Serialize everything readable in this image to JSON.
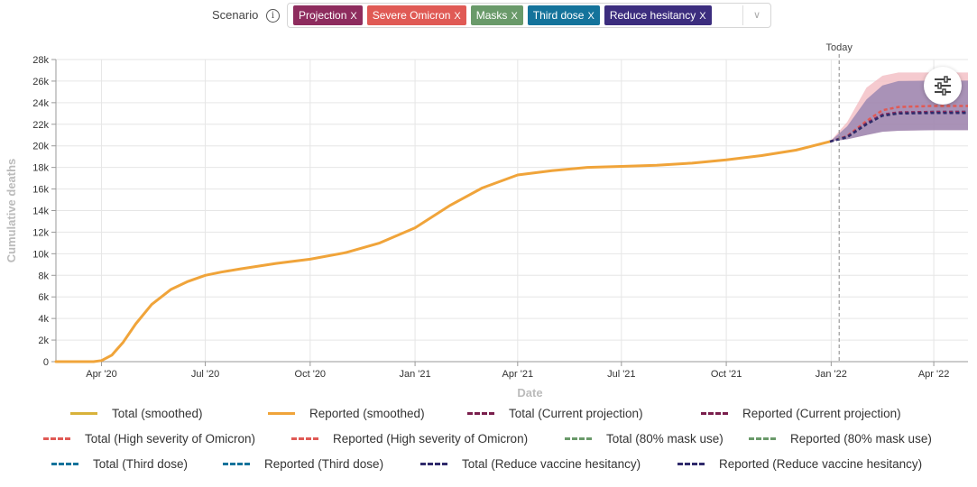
{
  "scenario": {
    "label": "Scenario",
    "info_glyph": "i",
    "chips": [
      {
        "label": "Projection",
        "color": "#8e2c5e"
      },
      {
        "label": "Severe Omicron",
        "color": "#e05a55"
      },
      {
        "label": "Masks",
        "color": "#6a9a6a"
      },
      {
        "label": "Third dose",
        "color": "#14739b"
      },
      {
        "label": "Reduce hesitancy",
        "color": "#3c2d7e"
      }
    ],
    "chip_close": "X",
    "caret": "∨"
  },
  "chart_data": {
    "type": "line",
    "xlabel": "Date",
    "ylabel": "Cumulative deaths",
    "ylim": [
      0,
      28000
    ],
    "x_range": [
      "2020-02-21",
      "2022-05-01"
    ],
    "x_ticks": [
      {
        "date": "2020-04-01",
        "label": "Apr '20"
      },
      {
        "date": "2020-07-01",
        "label": "Jul '20"
      },
      {
        "date": "2020-10-01",
        "label": "Oct '20"
      },
      {
        "date": "2021-01-01",
        "label": "Jan '21"
      },
      {
        "date": "2021-04-01",
        "label": "Apr '21"
      },
      {
        "date": "2021-07-01",
        "label": "Jul '21"
      },
      {
        "date": "2021-10-01",
        "label": "Oct '21"
      },
      {
        "date": "2022-01-01",
        "label": "Jan '22"
      },
      {
        "date": "2022-04-01",
        "label": "Apr '22"
      }
    ],
    "y_ticks": [
      {
        "value": 0,
        "label": "0"
      },
      {
        "value": 2000,
        "label": "2k"
      },
      {
        "value": 4000,
        "label": "4k"
      },
      {
        "value": 6000,
        "label": "6k"
      },
      {
        "value": 8000,
        "label": "8k"
      },
      {
        "value": 10000,
        "label": "10k"
      },
      {
        "value": 12000,
        "label": "12k"
      },
      {
        "value": 14000,
        "label": "14k"
      },
      {
        "value": 16000,
        "label": "16k"
      },
      {
        "value": 18000,
        "label": "18k"
      },
      {
        "value": 20000,
        "label": "20k"
      },
      {
        "value": 22000,
        "label": "22k"
      },
      {
        "value": 24000,
        "label": "24k"
      },
      {
        "value": 26000,
        "label": "26k"
      },
      {
        "value": 28000,
        "label": "28k"
      }
    ],
    "grid": true,
    "today": {
      "date": "2022-01-08",
      "label": "Today"
    },
    "series": [
      {
        "name": "Reported (smoothed)",
        "color": "#f0a43a",
        "style": "solid",
        "points": [
          [
            "2020-02-21",
            0
          ],
          [
            "2020-03-15",
            0
          ],
          [
            "2020-03-25",
            0
          ],
          [
            "2020-04-01",
            100
          ],
          [
            "2020-04-10",
            600
          ],
          [
            "2020-04-20",
            1800
          ],
          [
            "2020-05-01",
            3500
          ],
          [
            "2020-05-15",
            5300
          ],
          [
            "2020-06-01",
            6700
          ],
          [
            "2020-06-15",
            7400
          ],
          [
            "2020-07-01",
            8000
          ],
          [
            "2020-07-15",
            8300
          ],
          [
            "2020-08-01",
            8600
          ],
          [
            "2020-09-01",
            9100
          ],
          [
            "2020-10-01",
            9500
          ],
          [
            "2020-11-01",
            10100
          ],
          [
            "2020-12-01",
            11000
          ],
          [
            "2021-01-01",
            12400
          ],
          [
            "2021-02-01",
            14500
          ],
          [
            "2021-03-01",
            16100
          ],
          [
            "2021-04-01",
            17300
          ],
          [
            "2021-05-01",
            17700
          ],
          [
            "2021-06-01",
            18000
          ],
          [
            "2021-07-01",
            18100
          ],
          [
            "2021-08-01",
            18200
          ],
          [
            "2021-09-01",
            18400
          ],
          [
            "2021-10-01",
            18700
          ],
          [
            "2021-11-01",
            19100
          ],
          [
            "2021-12-01",
            19600
          ],
          [
            "2021-12-31",
            20400
          ]
        ]
      },
      {
        "name": "High severity of Omicron",
        "color": "#e05a55",
        "style": "dashed",
        "points": [
          [
            "2021-12-31",
            20400
          ],
          [
            "2022-01-15",
            20900
          ],
          [
            "2022-02-01",
            22300
          ],
          [
            "2022-02-15",
            23300
          ],
          [
            "2022-03-01",
            23600
          ],
          [
            "2022-04-01",
            23700
          ],
          [
            "2022-05-01",
            23700
          ]
        ]
      },
      {
        "name": "Masks",
        "color": "#6a9a6a",
        "style": "dashed",
        "points": [
          [
            "2021-12-31",
            20400
          ],
          [
            "2022-01-15",
            20800
          ],
          [
            "2022-02-01",
            22000
          ],
          [
            "2022-02-15",
            22800
          ],
          [
            "2022-03-01",
            23000
          ],
          [
            "2022-04-01",
            23100
          ],
          [
            "2022-05-01",
            23100
          ]
        ]
      },
      {
        "name": "Third dose",
        "color": "#14739b",
        "style": "dashed",
        "points": [
          [
            "2021-12-31",
            20400
          ],
          [
            "2022-01-15",
            20850
          ],
          [
            "2022-02-01",
            22100
          ],
          [
            "2022-02-15",
            22850
          ],
          [
            "2022-03-01",
            23050
          ],
          [
            "2022-04-01",
            23150
          ],
          [
            "2022-05-01",
            23150
          ]
        ]
      },
      {
        "name": "Projection",
        "color": "#8e2c5e",
        "style": "dashed",
        "points": [
          [
            "2021-12-31",
            20400
          ],
          [
            "2022-01-15",
            20850
          ],
          [
            "2022-02-01",
            22100
          ],
          [
            "2022-02-15",
            22900
          ],
          [
            "2022-03-01",
            23100
          ],
          [
            "2022-04-01",
            23150
          ],
          [
            "2022-05-01",
            23150
          ]
        ]
      },
      {
        "name": "Reduce hesitancy",
        "color": "#2f2a6b",
        "style": "dashed",
        "points": [
          [
            "2021-12-31",
            20400
          ],
          [
            "2022-01-15",
            20800
          ],
          [
            "2022-02-01",
            22000
          ],
          [
            "2022-02-15",
            22800
          ],
          [
            "2022-03-01",
            23000
          ],
          [
            "2022-04-01",
            23050
          ],
          [
            "2022-05-01",
            23050
          ]
        ]
      }
    ],
    "bands": [
      {
        "name": "Severe Omicron range",
        "color": "#f2b8bf",
        "opacity": 0.75,
        "upper": [
          [
            "2021-12-31",
            20400
          ],
          [
            "2022-01-15",
            22200
          ],
          [
            "2022-02-01",
            25400
          ],
          [
            "2022-02-15",
            26500
          ],
          [
            "2022-03-01",
            26800
          ],
          [
            "2022-04-01",
            26800
          ],
          [
            "2022-05-01",
            26800
          ]
        ],
        "lower": [
          [
            "2021-12-31",
            20400
          ],
          [
            "2022-01-15",
            20600
          ],
          [
            "2022-02-01",
            21000
          ],
          [
            "2022-02-15",
            21300
          ],
          [
            "2022-03-01",
            21400
          ],
          [
            "2022-04-01",
            21450
          ],
          [
            "2022-05-01",
            21450
          ]
        ]
      },
      {
        "name": "Projection range",
        "color": "#7b6fa8",
        "opacity": 0.62,
        "upper": [
          [
            "2021-12-31",
            20400
          ],
          [
            "2022-01-15",
            21800
          ],
          [
            "2022-02-01",
            24300
          ],
          [
            "2022-02-15",
            25600
          ],
          [
            "2022-03-01",
            26000
          ],
          [
            "2022-04-01",
            26050
          ],
          [
            "2022-05-01",
            26050
          ]
        ],
        "lower": [
          [
            "2021-12-31",
            20400
          ],
          [
            "2022-01-15",
            20600
          ],
          [
            "2022-02-01",
            21000
          ],
          [
            "2022-02-15",
            21300
          ],
          [
            "2022-03-01",
            21400
          ],
          [
            "2022-04-01",
            21450
          ],
          [
            "2022-05-01",
            21450
          ]
        ]
      }
    ],
    "legend": [
      {
        "label": "Total (smoothed)",
        "color": "#d8b23a",
        "style": "solid"
      },
      {
        "label": "Reported (smoothed)",
        "color": "#f0a43a",
        "style": "solid"
      },
      {
        "label": "Total (Current projection)",
        "color": "#7a1f4d",
        "style": "dashed"
      },
      {
        "label": "Reported (Current projection)",
        "color": "#7a1f4d",
        "style": "dashed"
      },
      {
        "label": "Total (High severity of Omicron)",
        "color": "#e05a55",
        "style": "dashed"
      },
      {
        "label": "Reported (High severity of Omicron)",
        "color": "#e05a55",
        "style": "dashed"
      },
      {
        "label": "Total (80% mask use)",
        "color": "#6a9a6a",
        "style": "dashed"
      },
      {
        "label": "Reported (80% mask use)",
        "color": "#6a9a6a",
        "style": "dashed"
      },
      {
        "label": "Total (Third dose)",
        "color": "#14739b",
        "style": "dashed"
      },
      {
        "label": "Reported (Third dose)",
        "color": "#14739b",
        "style": "dashed"
      },
      {
        "label": "Total (Reduce vaccine hesitancy)",
        "color": "#2f2a6b",
        "style": "dashed"
      },
      {
        "label": "Reported (Reduce vaccine hesitancy)",
        "color": "#2f2a6b",
        "style": "dashed"
      }
    ]
  },
  "settings_icon": "sliders-icon"
}
